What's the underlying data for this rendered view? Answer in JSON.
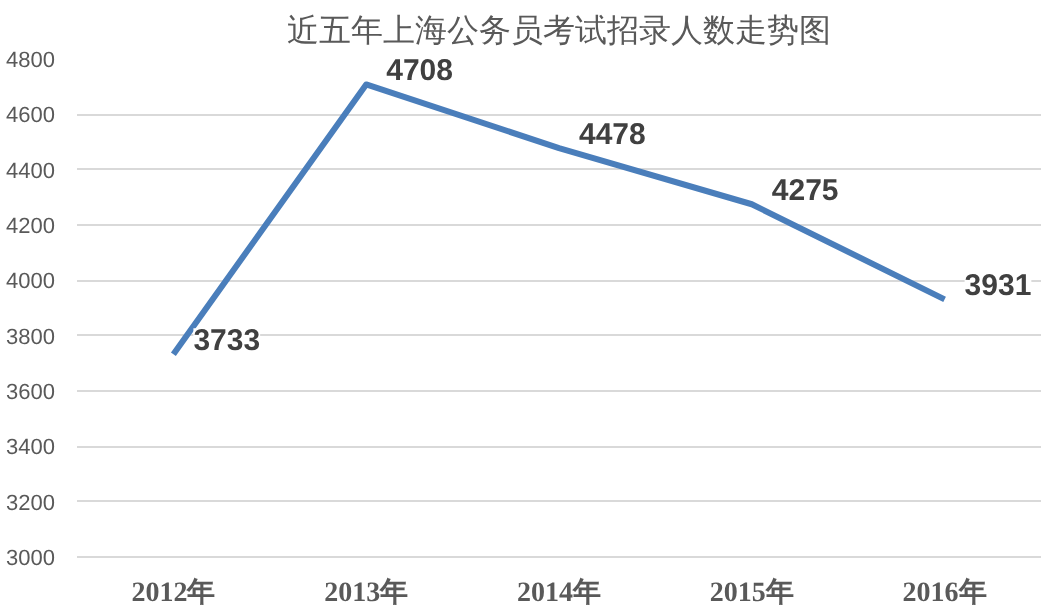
{
  "chart_data": {
    "type": "line",
    "title": "近五年上海公务员考试招录人数走势图",
    "categories": [
      "2012年",
      "2013年",
      "2014年",
      "2015年",
      "2016年"
    ],
    "series": [
      {
        "color": "#4a7ebb",
        "values": [
          3733,
          4708,
          4478,
          4275,
          3931
        ]
      }
    ],
    "ylim": [
      3000,
      4800
    ],
    "yticks": [
      3000,
      3200,
      3400,
      3600,
      3800,
      4000,
      4200,
      4400,
      4600,
      4800
    ],
    "grid": "y",
    "marker": "none",
    "line_style": "solid",
    "data_labels": true
  }
}
